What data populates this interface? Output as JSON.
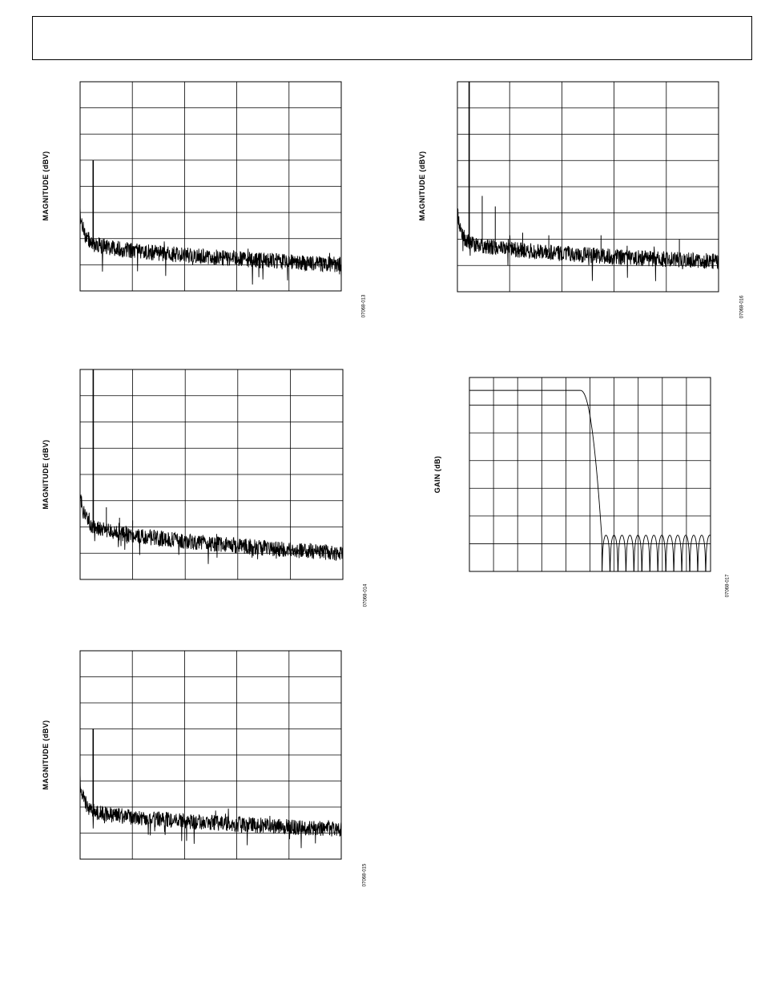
{
  "page": {
    "header_box": ""
  },
  "colors": {
    "trace": "#000000",
    "grid": "#000000",
    "background": "#ffffff"
  },
  "chart_data": [
    {
      "id": "07068-013",
      "type": "line",
      "title": "",
      "ylabel": "MAGNITUDE (dBV)",
      "xlabel": "",
      "figure_id": "07068-013",
      "grid": true,
      "grid_divisions": {
        "x": 5,
        "y": 8
      },
      "xlim": [
        0,
        1
      ],
      "ylim": [
        -160,
        0
      ],
      "noise_floor": {
        "start": -120,
        "end": -140,
        "jitter": 3
      },
      "tones": [
        {
          "x": 0.05,
          "y": -60
        }
      ]
    },
    {
      "id": "07068-014",
      "type": "line",
      "title": "",
      "ylabel": "MAGNITUDE (dBV)",
      "xlabel": "",
      "figure_id": "07068-014",
      "grid": true,
      "grid_divisions": {
        "x": 5,
        "y": 8
      },
      "xlim": [
        0,
        1
      ],
      "ylim": [
        -160,
        0
      ],
      "noise_floor": {
        "start": -115,
        "end": -140,
        "jitter": 3
      },
      "tones": [
        {
          "x": 0.05,
          "y": 0
        },
        {
          "x": 0.1,
          "y": -105
        },
        {
          "x": 0.15,
          "y": -113
        },
        {
          "x": 0.2,
          "y": -115
        },
        {
          "x": 0.35,
          "y": -124
        }
      ]
    },
    {
      "id": "07068-015",
      "type": "line",
      "title": "",
      "ylabel": "MAGNITUDE (dBV)",
      "xlabel": "",
      "figure_id": "07068-015",
      "grid": true,
      "grid_divisions": {
        "x": 5,
        "y": 8
      },
      "xlim": [
        0,
        1
      ],
      "ylim": [
        -160,
        0
      ],
      "noise_floor": {
        "start": -120,
        "end": -137,
        "jitter": 3
      },
      "tones": [
        {
          "x": 0.05,
          "y": -60
        }
      ]
    },
    {
      "id": "07068-016",
      "type": "line",
      "title": "",
      "ylabel": "MAGNITUDE (dBV)",
      "xlabel": "",
      "figure_id": "07068-016",
      "grid": true,
      "grid_divisions": {
        "x": 5,
        "y": 8
      },
      "xlim": [
        0,
        1
      ],
      "ylim": [
        -160,
        0
      ],
      "noise_floor": {
        "start": -120,
        "end": -137,
        "jitter": 3
      },
      "tones": [
        {
          "x": 0.045,
          "y": 0
        },
        {
          "x": 0.095,
          "y": -87
        },
        {
          "x": 0.145,
          "y": -95
        },
        {
          "x": 0.195,
          "y": -120
        },
        {
          "x": 0.25,
          "y": -115
        },
        {
          "x": 0.35,
          "y": -117
        },
        {
          "x": 0.55,
          "y": -117
        },
        {
          "x": 0.65,
          "y": -125
        },
        {
          "x": 0.85,
          "y": -120
        }
      ]
    },
    {
      "id": "07068-017",
      "type": "line",
      "title": "",
      "ylabel": "GAIN (dB)",
      "xlabel": "",
      "figure_id": "07068-017",
      "grid": true,
      "grid_divisions": {
        "x": 10,
        "y": 7
      },
      "xlim": [
        0,
        1
      ],
      "ylim": [
        -140,
        10
      ],
      "response": {
        "passband_end": 0.46,
        "stopband_start": 0.55,
        "passband_gain": 0,
        "stopband_peak": -112,
        "stopband_floor": -145
      }
    }
  ]
}
